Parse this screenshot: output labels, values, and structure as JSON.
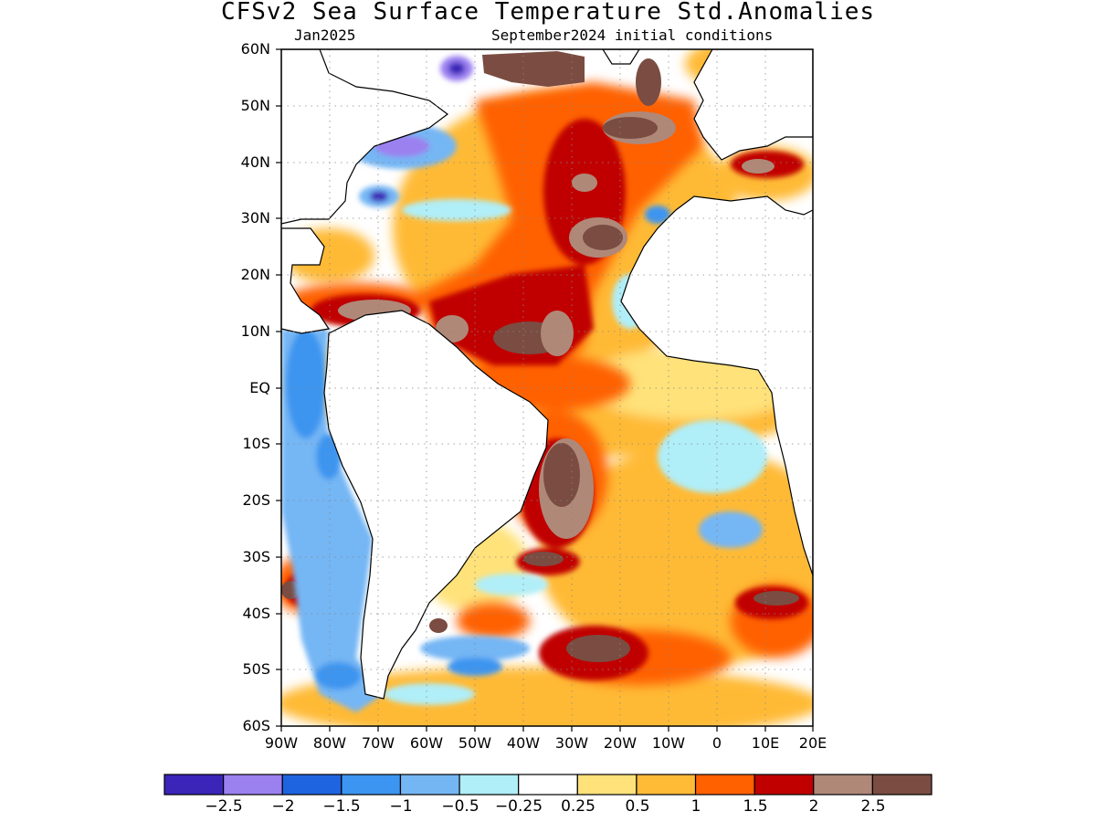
{
  "title": "CFSv2 Sea Surface Temperature Std.Anomalies",
  "subtitle_left": "Jan2025",
  "subtitle_right": "September2024 initial conditions",
  "lat_labels": [
    "60N",
    "50N",
    "40N",
    "30N",
    "20N",
    "10N",
    "EQ",
    "10S",
    "20S",
    "30S",
    "40S",
    "50S",
    "60S"
  ],
  "lon_labels": [
    "90W",
    "80W",
    "70W",
    "60W",
    "50W",
    "40W",
    "30W",
    "20W",
    "10W",
    "0",
    "10E",
    "20E"
  ],
  "colorbar": {
    "colors": [
      "#3a25b8",
      "#9b80f0",
      "#1e64e0",
      "#3c95f0",
      "#74b6f4",
      "#b0eef8",
      "#ffffff",
      "#ffe27a",
      "#ffba36",
      "#ff6000",
      "#c00000",
      "#b08878",
      "#7a4c42"
    ],
    "labels": [
      "−2.5",
      "−2",
      "−1.5",
      "−1",
      "−0.5",
      "−0.25",
      "0.25",
      "0.5",
      "1",
      "1.5",
      "2",
      "2.5"
    ]
  }
}
